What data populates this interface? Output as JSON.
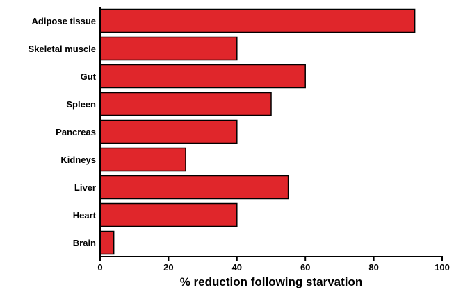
{
  "chart_data": {
    "type": "bar",
    "orientation": "horizontal",
    "categories": [
      "Adipose tissue",
      "Skeletal muscle",
      "Gut",
      "Spleen",
      "Pancreas",
      "Kidneys",
      "Liver",
      "Heart",
      "Brain"
    ],
    "values": [
      92,
      40,
      60,
      50,
      40,
      25,
      55,
      40,
      4
    ],
    "title": "",
    "xlabel": "% reduction following starvation",
    "ylabel": "",
    "xlim": [
      0,
      100
    ],
    "xticks": [
      0,
      20,
      40,
      60,
      80,
      100
    ],
    "grid": false,
    "legend": "none",
    "bar_color": "#e0262b",
    "bar_edge_color": "#000000"
  }
}
